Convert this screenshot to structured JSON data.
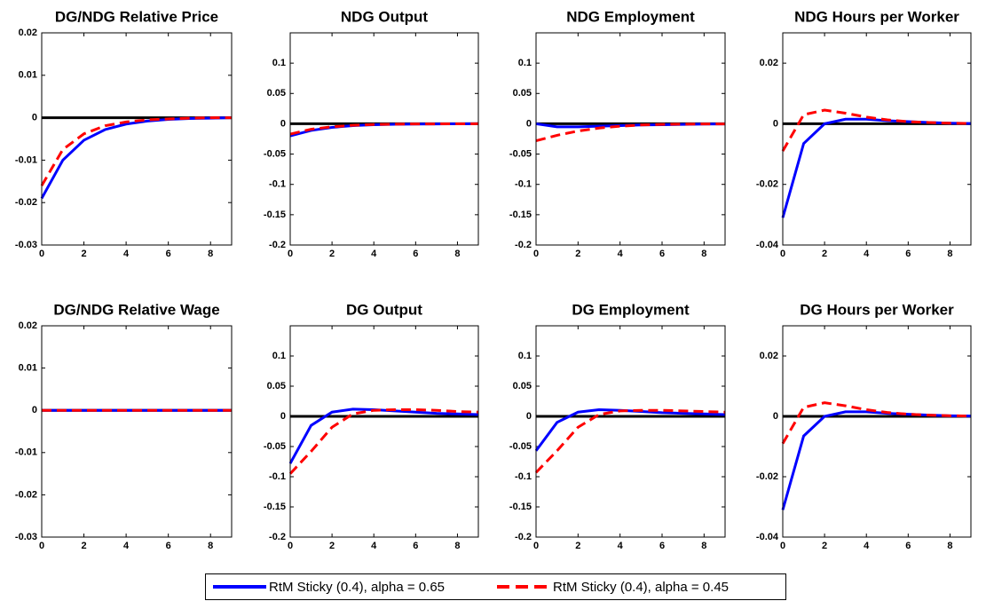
{
  "chart_data": [
    {
      "type": "line",
      "title": "DG/NDG Relative Price",
      "x": [
        0,
        1,
        2,
        3,
        4,
        5,
        6,
        7,
        8,
        9
      ],
      "xlim": [
        0,
        9
      ],
      "xticks": [
        0,
        2,
        4,
        6,
        8
      ],
      "ylim": [
        -0.03,
        0.02
      ],
      "yticks": [
        -0.03,
        -0.02,
        -0.01,
        0,
        0.01,
        0.02
      ],
      "series": [
        {
          "color": "#0000ff",
          "dashed": false,
          "values": [
            -0.019,
            -0.01,
            -0.0053,
            -0.0028,
            -0.0015,
            -0.0008,
            -0.0004,
            -0.0002,
            -0.0001,
            0
          ]
        },
        {
          "color": "#ff0000",
          "dashed": true,
          "values": [
            -0.016,
            -0.0075,
            -0.0038,
            -0.0019,
            -0.001,
            -0.0005,
            -0.0003,
            -0.0001,
            0,
            0
          ]
        }
      ]
    },
    {
      "type": "line",
      "title": "NDG Output",
      "x": [
        0,
        1,
        2,
        3,
        4,
        5,
        6,
        7,
        8,
        9
      ],
      "xlim": [
        0,
        9
      ],
      "xticks": [
        0,
        2,
        4,
        6,
        8
      ],
      "ylim": [
        -0.2,
        0.15
      ],
      "yticks": [
        -0.2,
        -0.15,
        -0.1,
        -0.05,
        0,
        0.05,
        0.1
      ],
      "series": [
        {
          "color": "#0000ff",
          "dashed": false,
          "values": [
            -0.02,
            -0.011,
            -0.006,
            -0.003,
            -0.0015,
            -0.0008,
            -0.0004,
            -0.0002,
            -0.0001,
            0
          ]
        },
        {
          "color": "#ff0000",
          "dashed": true,
          "values": [
            -0.017,
            -0.009,
            -0.005,
            -0.0025,
            -0.0012,
            -0.0006,
            -0.0003,
            -0.0002,
            -0.0001,
            0
          ]
        }
      ]
    },
    {
      "type": "line",
      "title": "NDG Employment",
      "x": [
        0,
        1,
        2,
        3,
        4,
        5,
        6,
        7,
        8,
        9
      ],
      "xlim": [
        0,
        9
      ],
      "xticks": [
        0,
        2,
        4,
        6,
        8
      ],
      "ylim": [
        -0.2,
        0.15
      ],
      "yticks": [
        -0.2,
        -0.15,
        -0.1,
        -0.05,
        0,
        0.05,
        0.1
      ],
      "series": [
        {
          "color": "#0000ff",
          "dashed": false,
          "values": [
            0,
            -0.005,
            -0.005,
            -0.004,
            -0.003,
            -0.002,
            -0.0015,
            -0.001,
            -0.0005,
            -0.0003
          ]
        },
        {
          "color": "#ff0000",
          "dashed": true,
          "values": [
            -0.028,
            -0.019,
            -0.012,
            -0.007,
            -0.004,
            -0.002,
            -0.001,
            -0.0006,
            -0.0003,
            -0.0002
          ]
        }
      ]
    },
    {
      "type": "line",
      "title": "NDG Hours per Worker",
      "x": [
        0,
        1,
        2,
        3,
        4,
        5,
        6,
        7,
        8,
        9
      ],
      "xlim": [
        0,
        9
      ],
      "xticks": [
        0,
        2,
        4,
        6,
        8
      ],
      "ylim": [
        -0.04,
        0.03
      ],
      "yticks": [
        -0.04,
        -0.02,
        0,
        0.02
      ],
      "series": [
        {
          "color": "#0000ff",
          "dashed": false,
          "values": [
            -0.031,
            -0.0065,
            0,
            0.0015,
            0.0015,
            0.001,
            0.0007,
            0.0004,
            0.0002,
            0.0001
          ]
        },
        {
          "color": "#ff0000",
          "dashed": true,
          "values": [
            -0.009,
            0.003,
            0.0045,
            0.0035,
            0.0022,
            0.0013,
            0.0007,
            0.0004,
            0.0002,
            0.0001
          ]
        }
      ]
    },
    {
      "type": "line",
      "title": "DG/NDG Relative Wage",
      "x": [
        0,
        1,
        2,
        3,
        4,
        5,
        6,
        7,
        8,
        9
      ],
      "xlim": [
        0,
        9
      ],
      "xticks": [
        0,
        2,
        4,
        6,
        8
      ],
      "ylim": [
        -0.03,
        0.02
      ],
      "yticks": [
        -0.03,
        -0.02,
        -0.01,
        0,
        0.01,
        0.02
      ],
      "series": [
        {
          "color": "#0000ff",
          "dashed": false,
          "values": [
            0,
            0,
            0,
            0,
            0,
            0,
            0,
            0,
            0,
            0
          ]
        },
        {
          "color": "#ff0000",
          "dashed": true,
          "values": [
            0,
            0,
            0,
            0,
            0,
            0,
            0,
            0,
            0,
            0
          ]
        }
      ]
    },
    {
      "type": "line",
      "title": "DG Output",
      "x": [
        0,
        1,
        2,
        3,
        4,
        5,
        6,
        7,
        8,
        9
      ],
      "xlim": [
        0,
        9
      ],
      "xticks": [
        0,
        2,
        4,
        6,
        8
      ],
      "ylim": [
        -0.2,
        0.15
      ],
      "yticks": [
        -0.2,
        -0.15,
        -0.1,
        -0.05,
        0,
        0.05,
        0.1
      ],
      "series": [
        {
          "color": "#0000ff",
          "dashed": false,
          "values": [
            -0.078,
            -0.015,
            0.007,
            0.012,
            0.011,
            0.009,
            0.007,
            0.005,
            0.004,
            0.003
          ]
        },
        {
          "color": "#ff0000",
          "dashed": true,
          "values": [
            -0.095,
            -0.058,
            -0.018,
            0.004,
            0.01,
            0.011,
            0.011,
            0.01,
            0.008,
            0.007
          ]
        }
      ]
    },
    {
      "type": "line",
      "title": "DG Employment",
      "x": [
        0,
        1,
        2,
        3,
        4,
        5,
        6,
        7,
        8,
        9
      ],
      "xlim": [
        0,
        9
      ],
      "xticks": [
        0,
        2,
        4,
        6,
        8
      ],
      "ylim": [
        -0.2,
        0.15
      ],
      "yticks": [
        -0.2,
        -0.15,
        -0.1,
        -0.05,
        0,
        0.05,
        0.1
      ],
      "series": [
        {
          "color": "#0000ff",
          "dashed": false,
          "values": [
            -0.057,
            -0.01,
            0.007,
            0.011,
            0.01,
            0.008,
            0.006,
            0.005,
            0.004,
            0.003
          ]
        },
        {
          "color": "#ff0000",
          "dashed": true,
          "values": [
            -0.093,
            -0.057,
            -0.018,
            0.003,
            0.009,
            0.01,
            0.01,
            0.009,
            0.008,
            0.007
          ]
        }
      ]
    },
    {
      "type": "line",
      "title": "DG Hours per Worker",
      "x": [
        0,
        1,
        2,
        3,
        4,
        5,
        6,
        7,
        8,
        9
      ],
      "xlim": [
        0,
        9
      ],
      "xticks": [
        0,
        2,
        4,
        6,
        8
      ],
      "ylim": [
        -0.04,
        0.03
      ],
      "yticks": [
        -0.04,
        -0.02,
        0,
        0.02
      ],
      "series": [
        {
          "color": "#0000ff",
          "dashed": false,
          "values": [
            -0.031,
            -0.0065,
            0,
            0.0015,
            0.0015,
            0.001,
            0.0007,
            0.0004,
            0.0002,
            0.0001
          ]
        },
        {
          "color": "#ff0000",
          "dashed": true,
          "values": [
            -0.009,
            0.003,
            0.0045,
            0.0035,
            0.0022,
            0.0013,
            0.0007,
            0.0004,
            0.0002,
            0.0001
          ]
        }
      ]
    }
  ],
  "legend": {
    "entries": [
      {
        "label": "RtM Sticky (0.4), alpha = 0.65",
        "color": "#0000ff",
        "dashed": false
      },
      {
        "label": "RtM Sticky (0.4), alpha = 0.45",
        "color": "#ff0000",
        "dashed": true
      }
    ]
  }
}
